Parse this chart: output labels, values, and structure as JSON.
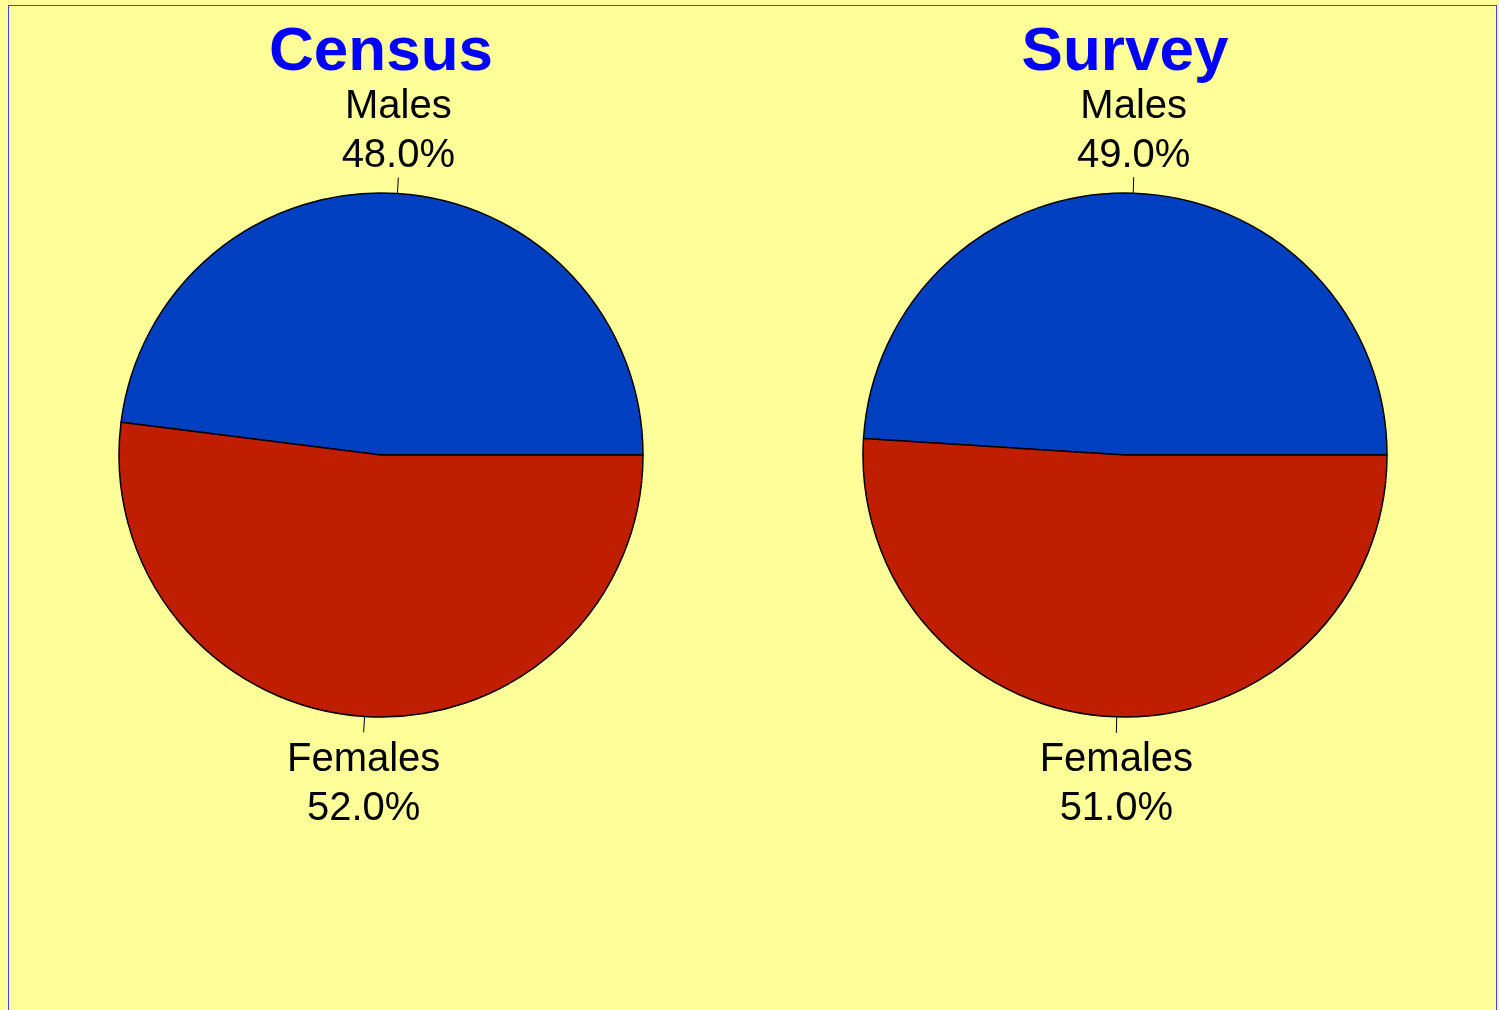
{
  "chart_data": [
    {
      "type": "pie",
      "title": "Census",
      "categories": [
        "Males",
        "Females"
      ],
      "values": [
        48,
        52
      ],
      "colors": [
        "#0040c0",
        "#c01e00"
      ],
      "value_labels": [
        "48.0%",
        "52.0%"
      ]
    },
    {
      "type": "pie",
      "title": "Survey",
      "categories": [
        "Males",
        "Females"
      ],
      "values": [
        49,
        51
      ],
      "colors": [
        "#0040c0",
        "#c01e00"
      ],
      "value_labels": [
        "49.0%",
        "51.0%"
      ]
    }
  ]
}
